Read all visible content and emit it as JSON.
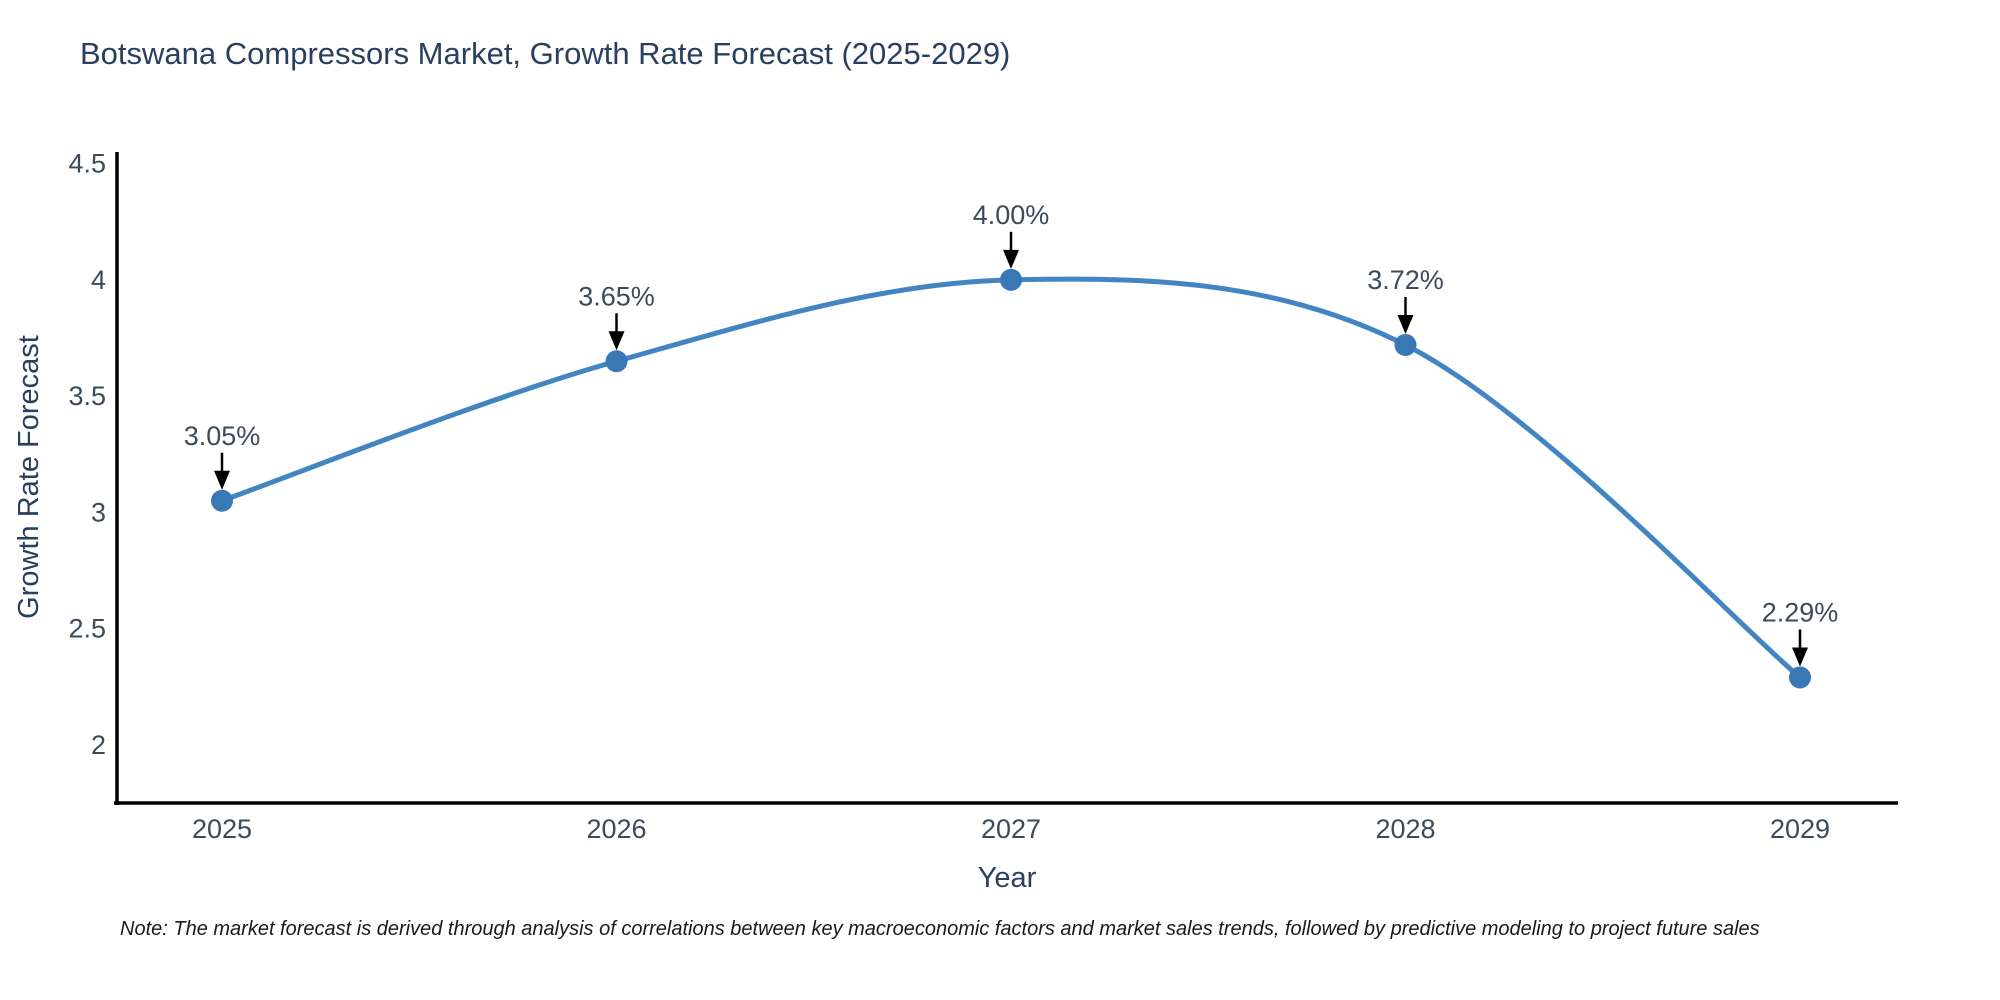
{
  "title": "Botswana Compressors Market, Growth Rate Forecast (2025-2029)",
  "note": "Note: The market forecast is derived through analysis of correlations between key macroeconomic factors and market sales trends, followed by predictive modeling to project future sales",
  "chart_data": {
    "type": "line",
    "title": "Botswana Compressors Market, Growth Rate Forecast (2025-2029)",
    "xlabel": "Year",
    "ylabel": "Growth Rate Forecast",
    "categories": [
      "2025",
      "2026",
      "2027",
      "2028",
      "2029"
    ],
    "values": [
      3.05,
      3.65,
      4.0,
      3.72,
      2.29
    ],
    "point_labels": [
      "3.05%",
      "3.65%",
      "4.00%",
      "3.72%",
      "2.29%"
    ],
    "yticks": [
      2,
      2.5,
      3,
      3.5,
      4,
      4.5
    ],
    "ylim": [
      1.75,
      4.55
    ],
    "grid": false,
    "legend_position": "none",
    "line_shape": "spline",
    "line_color": "#4285c2",
    "marker_color": "#3a77b5",
    "annotation_arrow_color": "#000000",
    "axis_color": "#000000",
    "tick_color": "#3d4a5c",
    "label_color": "#2a3f5f"
  }
}
